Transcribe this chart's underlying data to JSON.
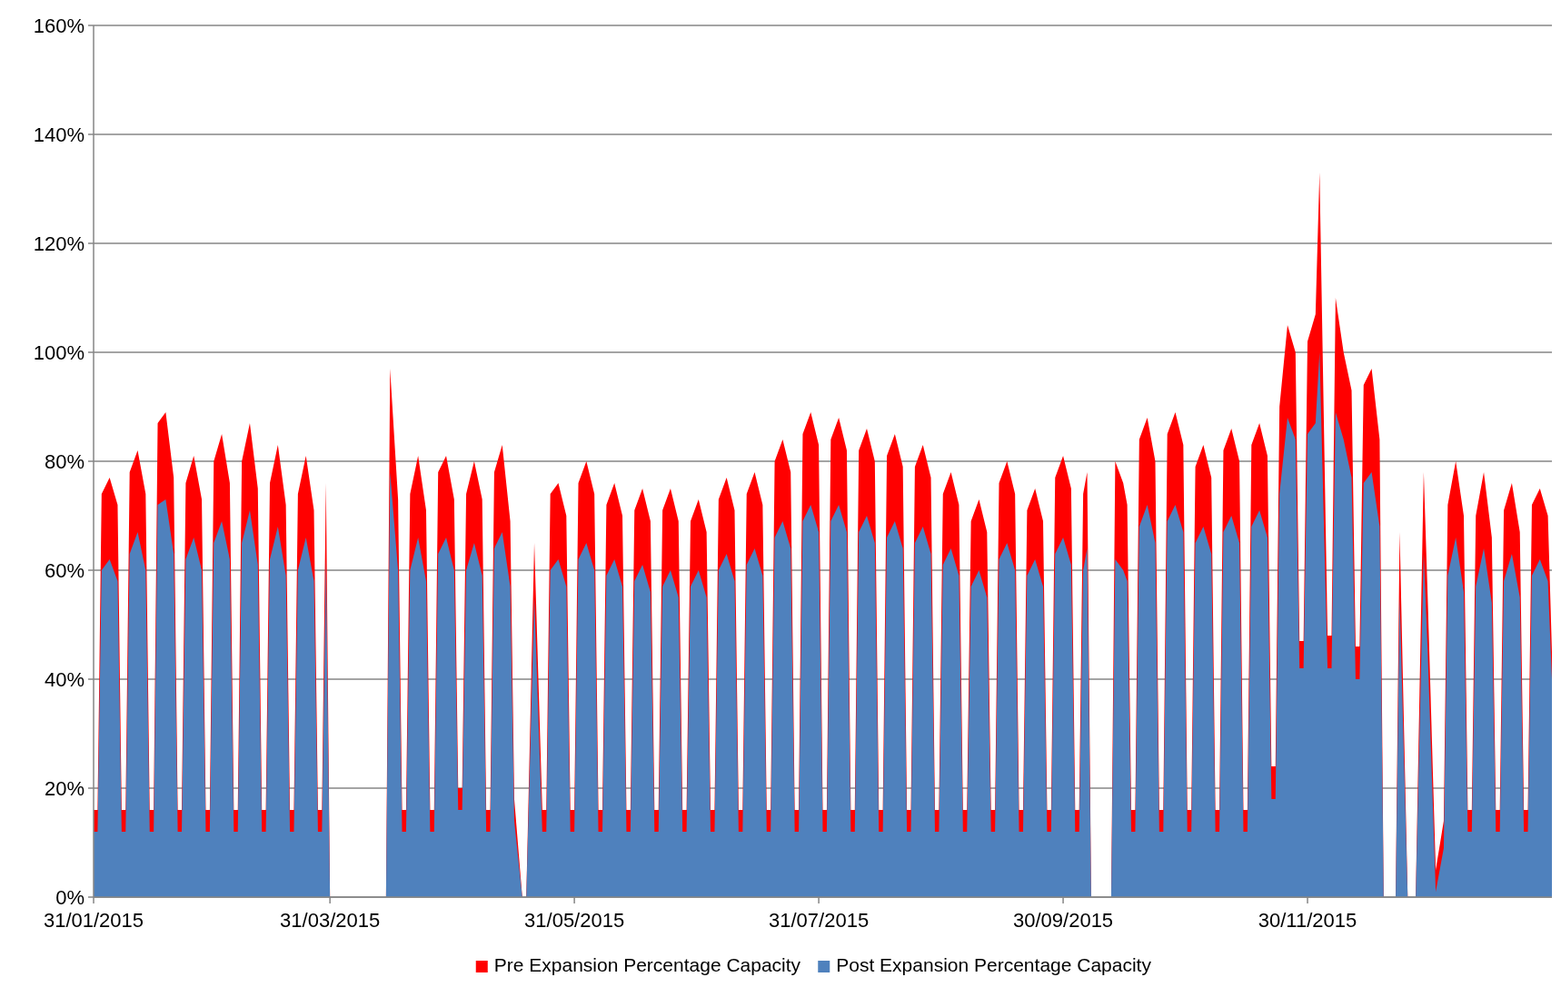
{
  "chart_data": {
    "type": "area",
    "legend": "bottom",
    "grid": "y",
    "xlim": [
      "2015-01-31",
      "2016-01-30"
    ],
    "xticks": [
      {
        "value": "2015-01-31",
        "label": "31/01/2015"
      },
      {
        "value": "2015-03-31",
        "label": "31/03/2015"
      },
      {
        "value": "2015-05-31",
        "label": "31/05/2015"
      },
      {
        "value": "2015-07-31",
        "label": "31/07/2015"
      },
      {
        "value": "2015-09-30",
        "label": "30/09/2015"
      },
      {
        "value": "2015-11-30",
        "label": "30/11/2015"
      }
    ],
    "ylim": [
      0,
      160
    ],
    "yticks": [
      {
        "value": 0,
        "label": "0%"
      },
      {
        "value": 20,
        "label": "20%"
      },
      {
        "value": 40,
        "label": "40%"
      },
      {
        "value": 60,
        "label": "60%"
      },
      {
        "value": 80,
        "label": "80%"
      },
      {
        "value": 100,
        "label": "100%"
      },
      {
        "value": 120,
        "label": "120%"
      },
      {
        "value": 140,
        "label": "140%"
      },
      {
        "value": 160,
        "label": "160%"
      }
    ],
    "x": [
      "2015-01-31",
      "2015-02-01",
      "2015-02-02",
      "2015-02-04",
      "2015-02-06",
      "2015-02-07",
      "2015-02-08",
      "2015-02-09",
      "2015-02-11",
      "2015-02-13",
      "2015-02-14",
      "2015-02-15",
      "2015-02-16",
      "2015-02-18",
      "2015-02-20",
      "2015-02-21",
      "2015-02-22",
      "2015-02-23",
      "2015-02-25",
      "2015-02-27",
      "2015-02-28",
      "2015-03-01",
      "2015-03-02",
      "2015-03-04",
      "2015-03-06",
      "2015-03-07",
      "2015-03-08",
      "2015-03-09",
      "2015-03-11",
      "2015-03-13",
      "2015-03-14",
      "2015-03-15",
      "2015-03-16",
      "2015-03-18",
      "2015-03-20",
      "2015-03-21",
      "2015-03-22",
      "2015-03-23",
      "2015-03-25",
      "2015-03-27",
      "2015-03-28",
      "2015-03-29",
      "2015-03-30",
      "2015-03-31",
      "2015-04-14",
      "2015-04-15",
      "2015-04-17",
      "2015-04-18",
      "2015-04-19",
      "2015-04-20",
      "2015-04-22",
      "2015-04-24",
      "2015-04-25",
      "2015-04-26",
      "2015-04-27",
      "2015-04-29",
      "2015-05-01",
      "2015-05-02",
      "2015-05-03",
      "2015-05-04",
      "2015-05-06",
      "2015-05-08",
      "2015-05-09",
      "2015-05-10",
      "2015-05-11",
      "2015-05-13",
      "2015-05-15",
      "2015-05-16",
      "2015-05-18",
      "2015-05-19",
      "2015-05-21",
      "2015-05-23",
      "2015-05-24",
      "2015-05-25",
      "2015-05-27",
      "2015-05-29",
      "2015-05-30",
      "2015-05-31",
      "2015-06-01",
      "2015-06-03",
      "2015-06-05",
      "2015-06-06",
      "2015-06-07",
      "2015-06-08",
      "2015-06-10",
      "2015-06-12",
      "2015-06-13",
      "2015-06-14",
      "2015-06-15",
      "2015-06-17",
      "2015-06-19",
      "2015-06-20",
      "2015-06-21",
      "2015-06-22",
      "2015-06-24",
      "2015-06-26",
      "2015-06-27",
      "2015-06-28",
      "2015-06-29",
      "2015-07-01",
      "2015-07-03",
      "2015-07-04",
      "2015-07-05",
      "2015-07-06",
      "2015-07-08",
      "2015-07-10",
      "2015-07-11",
      "2015-07-12",
      "2015-07-13",
      "2015-07-15",
      "2015-07-17",
      "2015-07-18",
      "2015-07-19",
      "2015-07-20",
      "2015-07-22",
      "2015-07-24",
      "2015-07-25",
      "2015-07-26",
      "2015-07-27",
      "2015-07-29",
      "2015-07-31",
      "2015-08-01",
      "2015-08-02",
      "2015-08-03",
      "2015-08-05",
      "2015-08-07",
      "2015-08-08",
      "2015-08-09",
      "2015-08-10",
      "2015-08-12",
      "2015-08-14",
      "2015-08-15",
      "2015-08-16",
      "2015-08-17",
      "2015-08-19",
      "2015-08-21",
      "2015-08-22",
      "2015-08-23",
      "2015-08-24",
      "2015-08-26",
      "2015-08-28",
      "2015-08-29",
      "2015-08-30",
      "2015-08-31",
      "2015-09-02",
      "2015-09-04",
      "2015-09-05",
      "2015-09-06",
      "2015-09-07",
      "2015-09-09",
      "2015-09-11",
      "2015-09-12",
      "2015-09-13",
      "2015-09-14",
      "2015-09-16",
      "2015-09-18",
      "2015-09-19",
      "2015-09-20",
      "2015-09-21",
      "2015-09-23",
      "2015-09-25",
      "2015-09-26",
      "2015-09-27",
      "2015-09-28",
      "2015-09-30",
      "2015-10-02",
      "2015-10-03",
      "2015-10-04",
      "2015-10-05",
      "2015-10-06",
      "2015-10-07",
      "2015-10-12",
      "2015-10-13",
      "2015-10-15",
      "2015-10-16",
      "2015-10-17",
      "2015-10-18",
      "2015-10-19",
      "2015-10-21",
      "2015-10-23",
      "2015-10-24",
      "2015-10-25",
      "2015-10-26",
      "2015-10-28",
      "2015-10-30",
      "2015-10-31",
      "2015-11-01",
      "2015-11-02",
      "2015-11-04",
      "2015-11-06",
      "2015-11-07",
      "2015-11-08",
      "2015-11-09",
      "2015-11-11",
      "2015-11-13",
      "2015-11-14",
      "2015-11-15",
      "2015-11-16",
      "2015-11-18",
      "2015-11-20",
      "2015-11-21",
      "2015-11-22",
      "2015-11-23",
      "2015-11-25",
      "2015-11-27",
      "2015-11-28",
      "2015-11-29",
      "2015-11-30",
      "2015-12-02",
      "2015-12-03",
      "2015-12-05",
      "2015-12-06",
      "2015-12-07",
      "2015-12-09",
      "2015-12-11",
      "2015-12-12",
      "2015-12-13",
      "2015-12-14",
      "2015-12-16",
      "2015-12-18",
      "2015-12-19",
      "2015-12-22",
      "2015-12-23",
      "2015-12-25",
      "2015-12-27",
      "2015-12-29",
      "2015-12-30",
      "2016-01-01",
      "2016-01-03",
      "2016-01-04",
      "2016-01-06",
      "2016-01-08",
      "2016-01-09",
      "2016-01-10",
      "2016-01-11",
      "2016-01-13",
      "2016-01-15",
      "2016-01-16",
      "2016-01-17",
      "2016-01-18",
      "2016-01-20",
      "2016-01-22",
      "2016-01-23",
      "2016-01-24",
      "2016-01-25",
      "2016-01-27",
      "2016-01-29",
      "2016-01-30"
    ],
    "series": [
      {
        "name": "Pre Expansion Percentage Capacity",
        "color": "#ff0000",
        "values": [
          16,
          16,
          74,
          77,
          72,
          16,
          16,
          78,
          82,
          74,
          16,
          16,
          87,
          89,
          77,
          16,
          16,
          76,
          81,
          73,
          16,
          16,
          80,
          85,
          76,
          16,
          16,
          80,
          87,
          75,
          16,
          16,
          76,
          83,
          72,
          16,
          16,
          74,
          81,
          71,
          16,
          16,
          76,
          0,
          0,
          97,
          73,
          16,
          16,
          74,
          81,
          71,
          16,
          16,
          78,
          81,
          73,
          20,
          20,
          74,
          80,
          73,
          16,
          16,
          78,
          83,
          69,
          18,
          0,
          0,
          65,
          16,
          16,
          74,
          76,
          70,
          16,
          16,
          76,
          80,
          74,
          16,
          16,
          72,
          76,
          70,
          16,
          16,
          71,
          75,
          69,
          16,
          16,
          71,
          75,
          69,
          16,
          16,
          69,
          73,
          67,
          16,
          16,
          73,
          77,
          71,
          16,
          16,
          74,
          78,
          72,
          16,
          16,
          80,
          84,
          78,
          16,
          16,
          85,
          89,
          83,
          16,
          16,
          84,
          88,
          82,
          16,
          16,
          82,
          86,
          80,
          16,
          16,
          81,
          85,
          79,
          16,
          16,
          79,
          83,
          77,
          16,
          16,
          74,
          78,
          72,
          16,
          16,
          69,
          73,
          67,
          16,
          16,
          76,
          80,
          74,
          16,
          16,
          71,
          75,
          69,
          16,
          16,
          77,
          81,
          75,
          16,
          16,
          74,
          78,
          0,
          0,
          80,
          76,
          72,
          16,
          16,
          84,
          88,
          80,
          16,
          16,
          85,
          89,
          83,
          16,
          16,
          79,
          83,
          77,
          16,
          16,
          82,
          86,
          80,
          16,
          16,
          83,
          87,
          81,
          24,
          24,
          90,
          105,
          100,
          47,
          47,
          102,
          107,
          133,
          48,
          48,
          110,
          100,
          93,
          46,
          46,
          94,
          97,
          84,
          0,
          0,
          67,
          0,
          0,
          78,
          55,
          5,
          14,
          72,
          80,
          70,
          16,
          16,
          70,
          78,
          66,
          16,
          16,
          71,
          76,
          67,
          16,
          16,
          72,
          75,
          70,
          45
        ]
      },
      {
        "name": "Post Expansion Percentage Capacity",
        "color": "#4f81bd",
        "values": [
          12,
          12,
          60,
          62,
          58,
          12,
          12,
          63,
          67,
          60,
          12,
          12,
          72,
          73,
          63,
          12,
          12,
          62,
          66,
          60,
          12,
          12,
          65,
          69,
          62,
          12,
          12,
          65,
          71,
          61,
          12,
          12,
          62,
          68,
          59,
          12,
          12,
          60,
          66,
          58,
          12,
          12,
          62,
          0,
          0,
          78,
          60,
          12,
          12,
          60,
          66,
          58,
          12,
          12,
          63,
          66,
          60,
          16,
          16,
          60,
          65,
          59,
          12,
          12,
          64,
          67,
          57,
          14,
          0,
          0,
          55,
          12,
          12,
          60,
          62,
          57,
          12,
          12,
          62,
          65,
          60,
          12,
          12,
          59,
          62,
          57,
          12,
          12,
          58,
          61,
          56,
          12,
          12,
          57,
          60,
          55,
          12,
          12,
          57,
          60,
          55,
          12,
          12,
          60,
          63,
          58,
          12,
          12,
          61,
          64,
          59,
          12,
          12,
          66,
          69,
          64,
          12,
          12,
          69,
          72,
          67,
          12,
          12,
          69,
          72,
          67,
          12,
          12,
          67,
          70,
          65,
          12,
          12,
          66,
          69,
          64,
          12,
          12,
          65,
          68,
          63,
          12,
          12,
          61,
          64,
          59,
          12,
          12,
          57,
          60,
          55,
          12,
          12,
          62,
          65,
          60,
          12,
          12,
          59,
          62,
          57,
          12,
          12,
          63,
          66,
          61,
          12,
          12,
          60,
          64,
          0,
          0,
          62,
          60,
          58,
          12,
          12,
          68,
          72,
          65,
          12,
          12,
          69,
          72,
          67,
          12,
          12,
          65,
          68,
          63,
          12,
          12,
          67,
          70,
          65,
          12,
          12,
          68,
          71,
          66,
          18,
          18,
          74,
          88,
          84,
          42,
          42,
          85,
          87,
          100,
          42,
          42,
          89,
          84,
          77,
          40,
          40,
          76,
          78,
          68,
          0,
          0,
          55,
          0,
          0,
          63,
          45,
          1,
          9,
          59,
          66,
          56,
          12,
          12,
          57,
          64,
          54,
          12,
          12,
          58,
          63,
          55,
          12,
          12,
          59,
          62,
          58,
          40
        ]
      }
    ]
  }
}
